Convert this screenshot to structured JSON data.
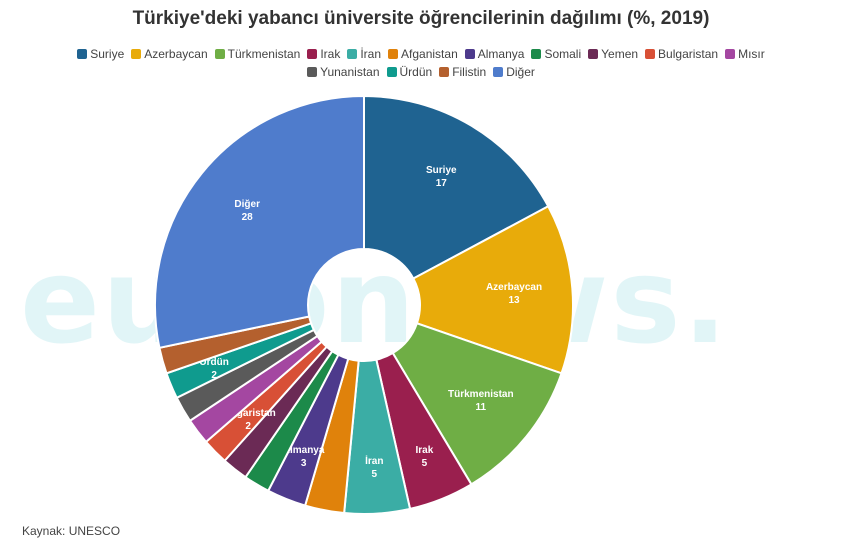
{
  "title": "Türkiye'deki yabancı üniversite öğrencilerinin dağılımı (%, 2019)",
  "watermark": "euronews.",
  "source": "Kaynak: UNESCO",
  "legend": {
    "rows": [
      [
        {
          "label": "Suriye",
          "color": "#1f6391"
        },
        {
          "label": "Azerbaycan",
          "color": "#e8ab0a"
        },
        {
          "label": "Türkmenistan",
          "color": "#6fae45"
        },
        {
          "label": "Irak",
          "color": "#9a1f4e"
        },
        {
          "label": "İran",
          "color": "#3bada5"
        },
        {
          "label": "Afganistan",
          "color": "#e0820b"
        },
        {
          "label": "Almanya",
          "color": "#4d3a8c"
        },
        {
          "label": "Somali",
          "color": "#1c8a4a"
        },
        {
          "label": "Yemen",
          "color": "#6b2a55"
        },
        {
          "label": "Bulgaristan",
          "color": "#d85036"
        },
        {
          "label": "Mısır",
          "color": "#a447a1"
        }
      ],
      [
        {
          "label": "Yunanistan",
          "color": "#5a5a5a"
        },
        {
          "label": "Ürdün",
          "color": "#0f9b8e"
        },
        {
          "label": "Filistin",
          "color": "#b4602e"
        },
        {
          "label": "Diğer",
          "color": "#4f7ccc"
        }
      ]
    ]
  },
  "chart_data": {
    "type": "pie",
    "title": "Türkiye'deki yabancı üniversite öğrencilerinin dağılımı (%, 2019)",
    "unit": "%",
    "slices": [
      {
        "label": "Suriye",
        "value": 17,
        "color": "#1f6391",
        "show_label": true
      },
      {
        "label": "Azerbaycan",
        "value": 13,
        "color": "#e8ab0a",
        "show_label": true
      },
      {
        "label": "Türkmenistan",
        "value": 11,
        "color": "#6fae45",
        "show_label": true
      },
      {
        "label": "Irak",
        "value": 5,
        "color": "#9a1f4e",
        "show_label": true
      },
      {
        "label": "İran",
        "value": 5,
        "color": "#3bada5",
        "show_label": true
      },
      {
        "label": "Afganistan",
        "value": 3,
        "color": "#e0820b",
        "show_label": false
      },
      {
        "label": "Almanya",
        "value": 3,
        "color": "#4d3a8c",
        "show_label": true
      },
      {
        "label": "Somali",
        "value": 2,
        "color": "#1c8a4a",
        "show_label": false
      },
      {
        "label": "Yemen",
        "value": 2,
        "color": "#6b2a55",
        "show_label": false
      },
      {
        "label": "Bulgaristan",
        "value": 2,
        "color": "#d85036",
        "show_label": true
      },
      {
        "label": "Mısır",
        "value": 2,
        "color": "#a447a1",
        "show_label": false
      },
      {
        "label": "Yunanistan",
        "value": 2,
        "color": "#5a5a5a",
        "show_label": false
      },
      {
        "label": "Ürdün",
        "value": 2,
        "color": "#0f9b8e",
        "show_label": true
      },
      {
        "label": "Filistin",
        "value": 2,
        "color": "#b4602e",
        "show_label": false
      },
      {
        "label": "Diğer",
        "value": 28,
        "color": "#4f7ccc",
        "show_label": true
      }
    ]
  }
}
